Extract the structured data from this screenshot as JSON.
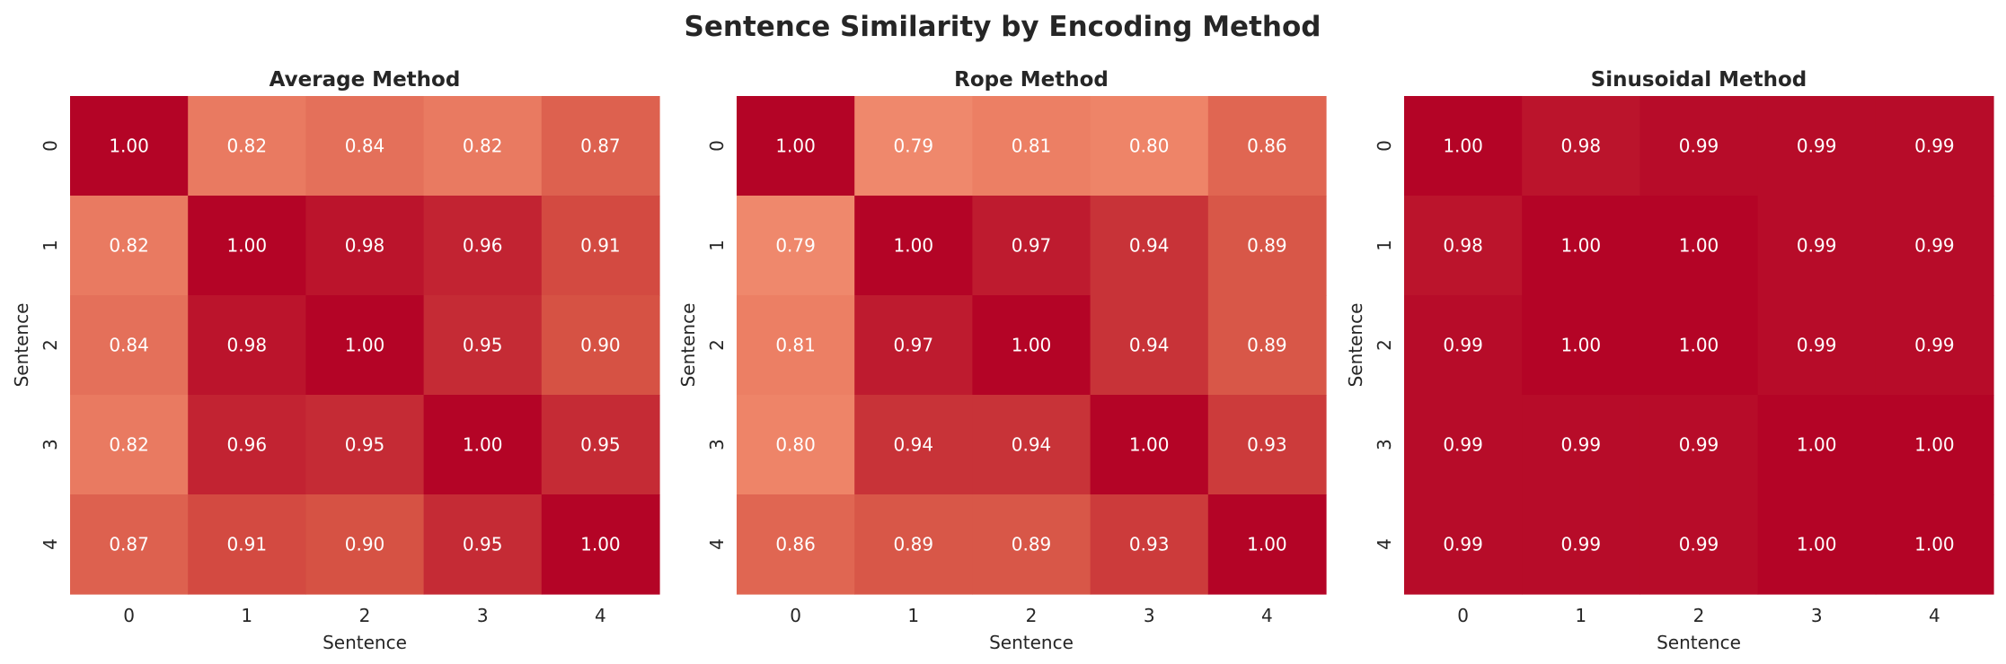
{
  "chart_data": {
    "type": "heatmap",
    "title": "Sentence Similarity by Encoding Method",
    "colormap": "coolwarm",
    "value_range": [
      0,
      1
    ],
    "annotation_format": "0.00",
    "annotation_color": "#ffffff",
    "colorbar": false,
    "panels": [
      {
        "title": "Average Method",
        "xlabel": "Sentence",
        "ylabel": "Sentence",
        "x_ticks": [
          "0",
          "1",
          "2",
          "3",
          "4"
        ],
        "y_ticks": [
          "0",
          "1",
          "2",
          "3",
          "4"
        ],
        "values": [
          [
            1.0,
            0.82,
            0.84,
            0.82,
            0.87
          ],
          [
            0.82,
            1.0,
            0.98,
            0.96,
            0.91
          ],
          [
            0.84,
            0.98,
            1.0,
            0.95,
            0.9
          ],
          [
            0.82,
            0.96,
            0.95,
            1.0,
            0.95
          ],
          [
            0.87,
            0.91,
            0.9,
            0.95,
            1.0
          ]
        ]
      },
      {
        "title": "Rope Method",
        "xlabel": "Sentence",
        "ylabel": "Sentence",
        "x_ticks": [
          "0",
          "1",
          "2",
          "3",
          "4"
        ],
        "y_ticks": [
          "0",
          "1",
          "2",
          "3",
          "4"
        ],
        "values": [
          [
            1.0,
            0.79,
            0.81,
            0.8,
            0.86
          ],
          [
            0.79,
            1.0,
            0.97,
            0.94,
            0.89
          ],
          [
            0.81,
            0.97,
            1.0,
            0.94,
            0.89
          ],
          [
            0.8,
            0.94,
            0.94,
            1.0,
            0.93
          ],
          [
            0.86,
            0.89,
            0.89,
            0.93,
            1.0
          ]
        ]
      },
      {
        "title": "Sinusoidal Method",
        "xlabel": "Sentence",
        "ylabel": "Sentence",
        "x_ticks": [
          "0",
          "1",
          "2",
          "3",
          "4"
        ],
        "y_ticks": [
          "0",
          "1",
          "2",
          "3",
          "4"
        ],
        "values": [
          [
            1.0,
            0.98,
            0.99,
            0.99,
            0.99
          ],
          [
            0.98,
            1.0,
            1.0,
            0.99,
            0.99
          ],
          [
            0.99,
            1.0,
            1.0,
            0.99,
            0.99
          ],
          [
            0.99,
            0.99,
            0.99,
            1.0,
            1.0
          ],
          [
            0.99,
            0.99,
            0.99,
            1.0,
            1.0
          ]
        ]
      }
    ]
  }
}
